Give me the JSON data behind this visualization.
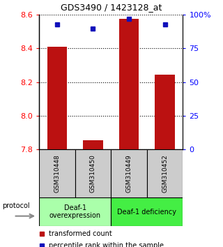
{
  "title": "GDS3490 / 1423128_at",
  "samples": [
    "GSM310448",
    "GSM310450",
    "GSM310449",
    "GSM310452"
  ],
  "bar_values": [
    8.41,
    7.855,
    8.575,
    8.245
  ],
  "percentile_values": [
    93,
    90,
    97,
    93
  ],
  "ylim_left": [
    7.8,
    8.6
  ],
  "ylim_right": [
    0,
    100
  ],
  "yticks_left": [
    7.8,
    8.0,
    8.2,
    8.4,
    8.6
  ],
  "yticks_right": [
    0,
    25,
    50,
    75,
    100
  ],
  "right_tick_labels": [
    "0",
    "25",
    "50",
    "75",
    "100%"
  ],
  "bar_color": "#bb1111",
  "percentile_color": "#1111bb",
  "groups": [
    {
      "label": "Deaf-1\noverexpression",
      "color": "#aaffaa",
      "span": [
        0,
        2
      ]
    },
    {
      "label": "Deaf-1 deficiency",
      "color": "#44ee44",
      "span": [
        2,
        4
      ]
    }
  ],
  "protocol_label": "protocol",
  "legend_bar_label": "transformed count",
  "legend_percentile_label": "percentile rank within the sample",
  "bar_width": 0.55,
  "baseline": 7.8,
  "sample_box_color": "#cccccc",
  "bg_color": "#ffffff"
}
